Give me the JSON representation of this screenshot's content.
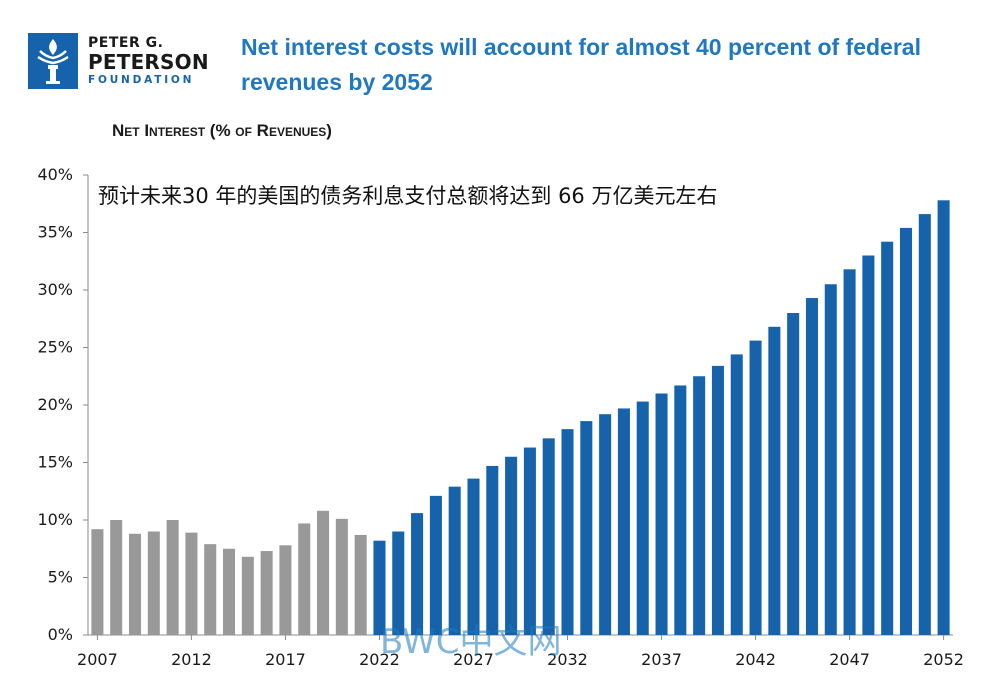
{
  "logo": {
    "line1": "PETER G.",
    "line2": "PETERSON",
    "line3": "FOUNDATION"
  },
  "title": "Net interest costs will account for almost 40 percent of federal revenues by 2052",
  "annotation": "预计未来30 年的美国的债务利息支付总额将达到 66 万亿美元左右",
  "watermark": "BWC中文网",
  "colors": {
    "historical": "#999999",
    "projected": "#1663ab",
    "title": "#1f78c1"
  },
  "chart_data": {
    "type": "bar",
    "title": "",
    "ylabel": "Net Interest (% of Revenues)",
    "xlabel": "",
    "ylim": [
      0,
      40
    ],
    "yticks": [
      "0%",
      "5%",
      "10%",
      "15%",
      "20%",
      "25%",
      "30%",
      "35%",
      "40%"
    ],
    "xticks": [
      "2007",
      "2012",
      "2017",
      "2022",
      "2027",
      "2032",
      "2037",
      "2042",
      "2047",
      "2052"
    ],
    "grid": false,
    "series": [
      {
        "name": "",
        "years": [
          2007,
          2008,
          2009,
          2010,
          2011,
          2012,
          2013,
          2014,
          2015,
          2016,
          2017,
          2018,
          2019,
          2020,
          2021
        ],
        "values": [
          9.2,
          10.0,
          8.8,
          9.0,
          10.0,
          8.9,
          7.9,
          7.5,
          6.8,
          7.3,
          7.8,
          9.7,
          10.8,
          10.1,
          8.7
        ]
      },
      {
        "name": "",
        "years": [
          2022,
          2023,
          2024,
          2025,
          2026,
          2027,
          2028,
          2029,
          2030,
          2031,
          2032,
          2033,
          2034,
          2035,
          2036,
          2037,
          2038,
          2039,
          2040,
          2041,
          2042,
          2043,
          2044,
          2045,
          2046,
          2047,
          2048,
          2049,
          2050,
          2051,
          2052
        ],
        "values": [
          8.2,
          9.0,
          10.6,
          12.1,
          12.9,
          13.6,
          14.7,
          15.5,
          16.3,
          17.1,
          17.9,
          18.6,
          19.2,
          19.7,
          20.3,
          21.0,
          21.7,
          22.5,
          23.4,
          24.4,
          25.6,
          26.8,
          28.0,
          29.3,
          30.5,
          31.8,
          33.0,
          34.2,
          35.4,
          36.6,
          37.8
        ]
      }
    ]
  }
}
